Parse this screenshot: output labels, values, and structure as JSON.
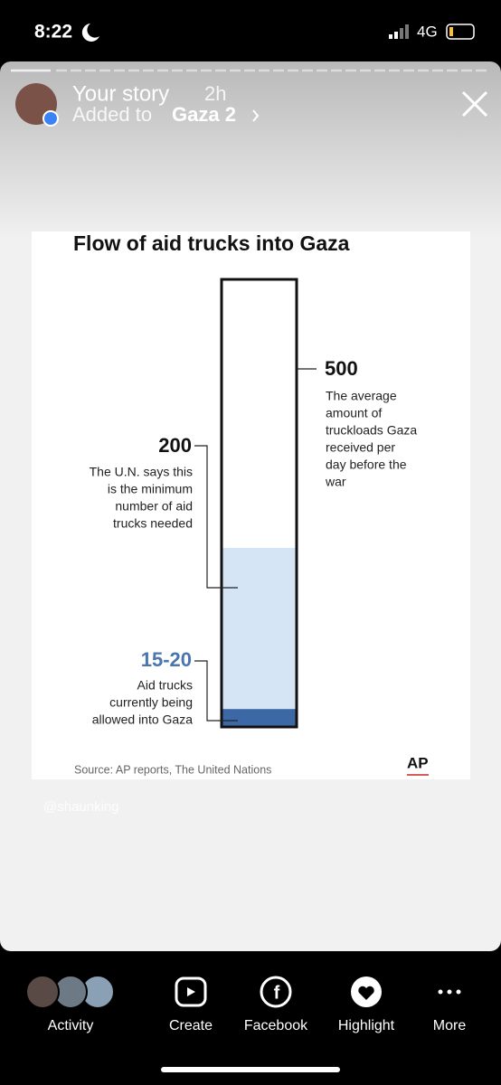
{
  "status_bar": {
    "time": "8:22",
    "network": "4G"
  },
  "story_header": {
    "title": "Your story",
    "age": "2h",
    "added_to": "Added to",
    "highlight": "Gaza 2"
  },
  "chart_data": {
    "type": "gauge",
    "title": "Flow of aid trucks into Gaza",
    "ylim": [
      0,
      500
    ],
    "items": [
      {
        "value": 500,
        "lines": [
          "The average",
          "amount of",
          "truckloads Gaza",
          "received per",
          "day before the",
          "war"
        ]
      },
      {
        "value": 200,
        "color": "#d6e5f6",
        "lines": [
          "The U.N. says this",
          "is the minimum",
          "number of aid",
          "trucks needed"
        ]
      },
      {
        "range": [
          15,
          20
        ],
        "value_label": "15-20",
        "color": "#3d68a6",
        "label_color": "#4a75ad",
        "lines": [
          "Aid trucks",
          "currently being",
          "allowed into Gaza"
        ]
      }
    ],
    "source": "Source: AP reports, The United Nations",
    "logo": "AP"
  },
  "watermark": "@shaunking",
  "bottom_bar": {
    "items": [
      "Activity",
      "Create",
      "Facebook",
      "Highlight",
      "More"
    ]
  }
}
